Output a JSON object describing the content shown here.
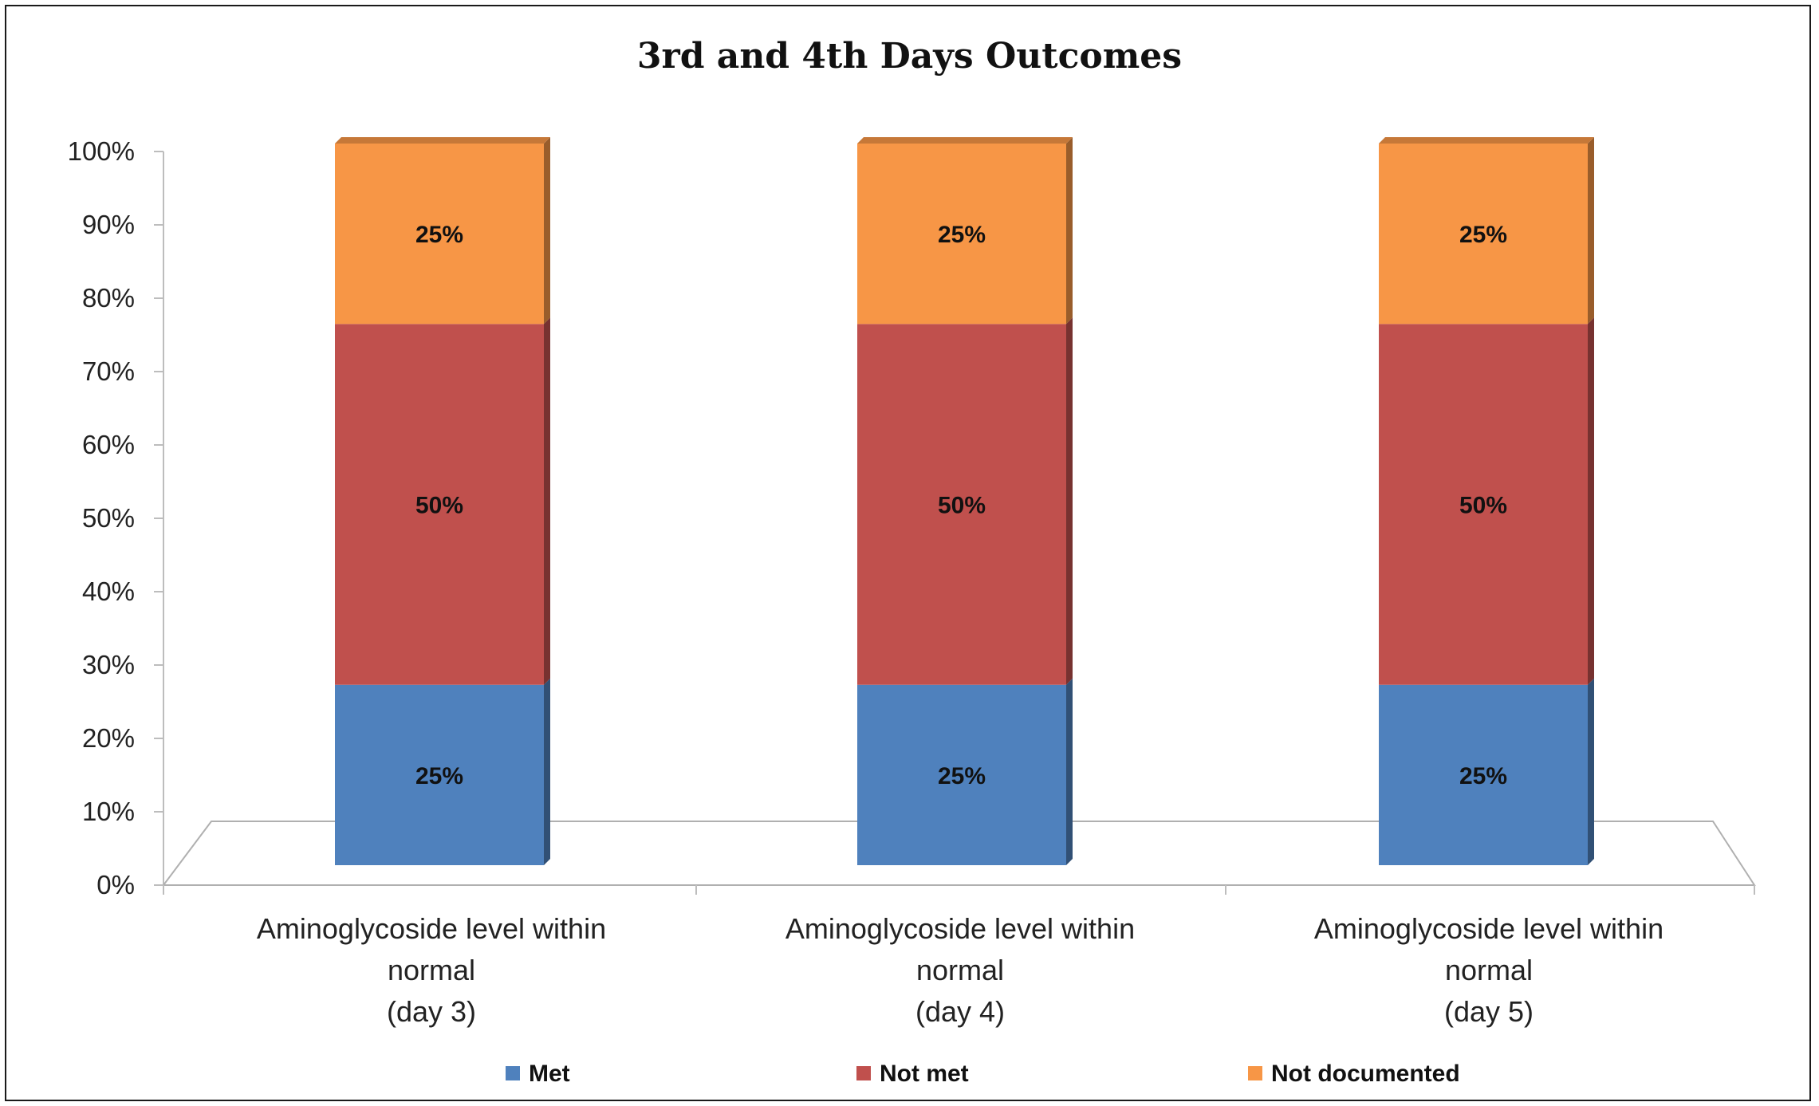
{
  "chart_data": {
    "type": "bar",
    "stacked": true,
    "three_d": true,
    "title": "3rd and 4th Days Outcomes",
    "xlabel": "",
    "ylabel": "",
    "ylim": [
      0,
      100
    ],
    "yticks": [
      "0%",
      "10%",
      "20%",
      "30%",
      "40%",
      "50%",
      "60%",
      "70%",
      "80%",
      "90%",
      "100%"
    ],
    "categories": [
      [
        "Aminoglycoside level within",
        "normal",
        "(day 3)"
      ],
      [
        "Aminoglycoside level within",
        "normal",
        "(day 4)"
      ],
      [
        "Aminoglycoside level within",
        "normal",
        "(day 5)"
      ]
    ],
    "series": [
      {
        "name": "Met",
        "values": [
          25,
          25,
          25
        ],
        "labels": [
          "25%",
          "25%",
          "25%"
        ],
        "color": "#4F81BD"
      },
      {
        "name": "Not met",
        "values": [
          50,
          50,
          50
        ],
        "labels": [
          "50%",
          "50%",
          "50%"
        ],
        "color": "#C0504D"
      },
      {
        "name": "Not documented",
        "values": [
          25,
          25,
          25
        ],
        "labels": [
          "25%",
          "25%",
          "25%"
        ],
        "color": "#F79646"
      }
    ],
    "grid": false,
    "legend_position": "bottom"
  }
}
